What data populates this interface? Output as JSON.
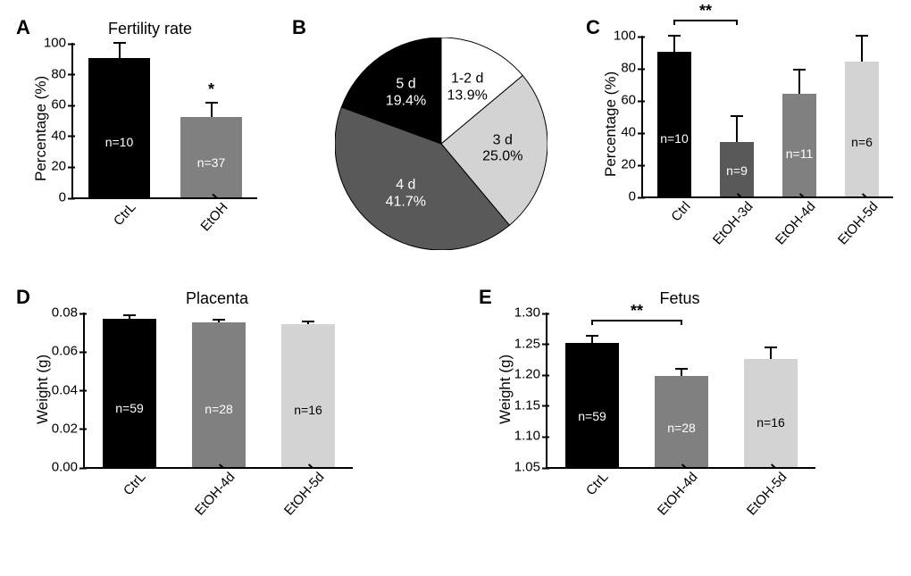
{
  "panelA": {
    "letter": "A",
    "title": "Fertility rate",
    "type": "bar",
    "ylabel": "Percentage (%)",
    "ylim": [
      0,
      100
    ],
    "ytick_step": 20,
    "categories": [
      "CtrL",
      "EtOH"
    ],
    "values": [
      90,
      52
    ],
    "errors": [
      10,
      9
    ],
    "bar_colors": [
      "#000000",
      "#808080"
    ],
    "bar_width": 0.42,
    "n_labels": [
      "n=10",
      "n=37"
    ],
    "sig": {
      "star": "*",
      "over_index": 1
    }
  },
  "panelB": {
    "letter": "B",
    "type": "pie",
    "slices": [
      {
        "label_top": "1-2 d",
        "label_bot": "13.9%",
        "value": 13.9,
        "fill": "#ffffff",
        "text": "#000000"
      },
      {
        "label_top": "3 d",
        "label_bot": "25.0%",
        "value": 25.0,
        "fill": "#d3d3d3",
        "text": "#000000"
      },
      {
        "label_top": "4 d",
        "label_bot": "41.7%",
        "value": 41.7,
        "fill": "#595959",
        "text": "#ffffff"
      },
      {
        "label_top": "5 d",
        "label_bot": "19.4%",
        "value": 19.4,
        "fill": "#000000",
        "text": "#ffffff"
      }
    ]
  },
  "panelC": {
    "letter": "C",
    "type": "bar",
    "ylabel": "Percentage (%)",
    "ylim": [
      0,
      100
    ],
    "ytick_step": 20,
    "categories": [
      "Ctrl",
      "EtOH-3d",
      "EtOH-4d",
      "EtOH-5d"
    ],
    "values": [
      90,
      34,
      64,
      84
    ],
    "errors": [
      10,
      16,
      15,
      16
    ],
    "bar_colors": [
      "#000000",
      "#595959",
      "#808080",
      "#d3d3d3"
    ],
    "bar_width": 0.26,
    "n_labels": [
      "n=10",
      "n=9",
      "n=11",
      "n=6"
    ],
    "sig_pair": {
      "from_index": 0,
      "to_index": 1,
      "stars": "**"
    }
  },
  "panelD": {
    "letter": "D",
    "title": "Placenta",
    "type": "bar",
    "ylabel": "Weight (g)",
    "ylim": [
      0.0,
      0.08
    ],
    "ytick_step": 0.02,
    "categories": [
      "CtrL",
      "EtOH-4d",
      "EtOH-5d"
    ],
    "values": [
      0.077,
      0.075,
      0.074
    ],
    "errors": [
      0.0015,
      0.0015,
      0.0015
    ],
    "bar_colors": [
      "#000000",
      "#808080",
      "#d3d3d3"
    ],
    "bar_width": 0.3,
    "n_labels": [
      "n=59",
      "n=28",
      "n=16"
    ]
  },
  "panelE": {
    "letter": "E",
    "title": "Fetus",
    "type": "bar",
    "ylabel": "Weight (g)",
    "ylim": [
      1.05,
      1.3
    ],
    "ytick_step": 0.05,
    "categories": [
      "CtrL",
      "EtOH-4d",
      "EtOH-5d"
    ],
    "values": [
      1.251,
      1.198,
      1.225
    ],
    "errors": [
      0.011,
      0.011,
      0.019
    ],
    "bar_colors": [
      "#000000",
      "#808080",
      "#d3d3d3"
    ],
    "bar_width": 0.3,
    "n_labels": [
      "n=59",
      "n=28",
      "n=16"
    ],
    "sig_pair": {
      "from_index": 0,
      "to_index": 1,
      "stars": "**"
    }
  }
}
